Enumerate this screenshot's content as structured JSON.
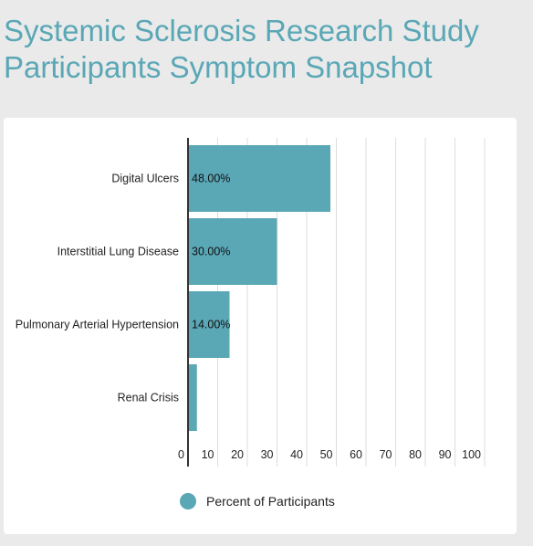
{
  "title": "Systemic Sclerosis Research Study Participants Symptom Snapshot",
  "colors": {
    "bar": "#5aa7b6",
    "title": "#5aa7b6",
    "grid": "#dddddd",
    "axis": "#333333",
    "background": "#e9eae9"
  },
  "chart_data": {
    "type": "bar",
    "orientation": "horizontal",
    "categories": [
      "Digital Ulcers",
      "Interstitial Lung Disease",
      "Pulmonary Arterial Hypertension",
      "Renal Crisis"
    ],
    "series": [
      {
        "name": "Percent of Participants",
        "values": [
          48,
          30,
          14,
          3
        ],
        "data_labels": [
          "48.00%",
          "30.00%",
          "14.00%",
          ""
        ]
      }
    ],
    "xlim": [
      0,
      100
    ],
    "x_ticks": [
      0,
      10,
      20,
      30,
      40,
      50,
      60,
      70,
      80,
      90,
      100
    ],
    "grid": true,
    "legend_position": "bottom"
  }
}
